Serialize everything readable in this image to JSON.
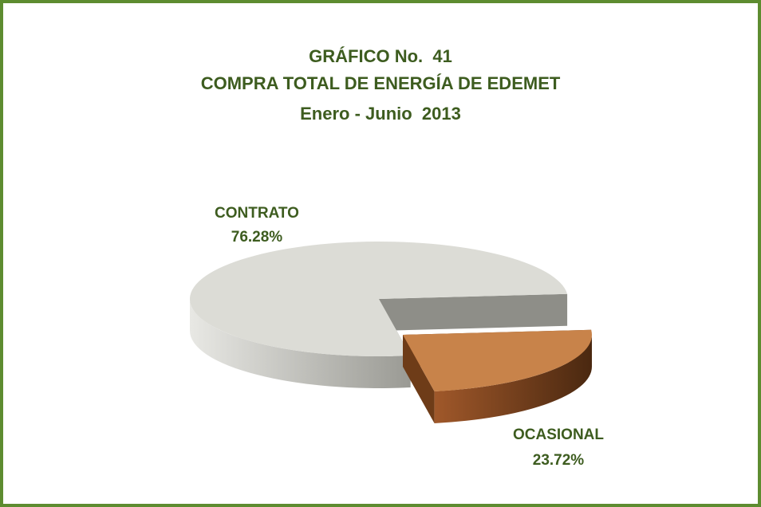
{
  "chart_data": {
    "type": "pie",
    "title": [
      "GRÁFICO No.  41",
      "COMPRA TOTAL DE ENERGÍA DE EDEMET",
      "Enero - Junio  2013"
    ],
    "categories": [
      "CONTRATO",
      "OCASIONAL"
    ],
    "values": [
      76.28,
      23.72
    ],
    "value_labels": [
      "76.28%",
      "23.72%"
    ],
    "colors": [
      "#dcdcd6",
      "#c8834a"
    ]
  }
}
